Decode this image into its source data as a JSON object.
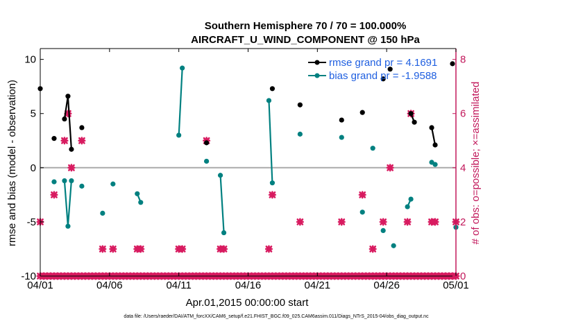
{
  "chart_data": {
    "type": "line",
    "title": "Southern Hemisphere 70 / 70 = 100.000%",
    "subtitle": "AIRCRAFT_U_WIND_COMPONENT @ 150 hPa",
    "xlabel": "Apr.01,2015 00:00:00 start",
    "ylabel": "rmse and bias (model - observation)",
    "y2label": "# of obs: o=possible; ×=assimilated",
    "xlim": [
      1,
      31
    ],
    "ylim": [
      -10,
      11
    ],
    "y2lim": [
      0,
      8.4
    ],
    "x_ticks": [
      1,
      6,
      11,
      16,
      21,
      26,
      31
    ],
    "x_tick_labels": [
      "04/01",
      "04/06",
      "04/11",
      "04/16",
      "04/21",
      "04/26",
      "05/01"
    ],
    "y_ticks": [
      -10,
      -5,
      0,
      5,
      10
    ],
    "y2_ticks": [
      0,
      2,
      4,
      6,
      8
    ],
    "zero_line": 0,
    "legend_placement": "top-right",
    "footnote": "data file: /Users/raeder/DAI/ATM_forcXX/CAM6_setup/f.e21.FHIST_BGC.f09_025.CAM6assim.011/Diags_NTrS_2015-04/obs_diag_output.nc",
    "colors": {
      "rmse": "#000000",
      "bias": "#008080",
      "counts": "#d81b60",
      "zero": "#aaaaaa",
      "axis_right": "#c2185b",
      "legend_text": "#1f5fe0"
    },
    "series": [
      {
        "name": "rmse grand pr = 4.1691",
        "segments": [
          [
            [
              1.0,
              7.3
            ]
          ],
          [
            [
              2.0,
              2.7
            ]
          ],
          [
            [
              2.75,
              4.5
            ],
            [
              3.0,
              6.6
            ],
            [
              3.25,
              1.7
            ]
          ],
          [
            [
              4.0,
              3.7
            ]
          ],
          [
            [
              13.0,
              2.3
            ]
          ],
          [
            [
              17.75,
              7.3
            ]
          ],
          [
            [
              19.75,
              5.8
            ]
          ],
          [
            [
              22.75,
              4.4
            ]
          ],
          [
            [
              24.25,
              5.1
            ]
          ],
          [
            [
              25.75,
              8.2
            ]
          ],
          [
            [
              26.25,
              9.1
            ]
          ],
          [
            [
              27.75,
              5.0
            ],
            [
              28.0,
              4.2
            ]
          ],
          [
            [
              29.25,
              3.7
            ],
            [
              29.5,
              2.1
            ]
          ],
          [
            [
              30.75,
              9.6
            ]
          ]
        ]
      },
      {
        "name": "bias grand pr = -1.9588",
        "segments": [
          [
            [
              2.0,
              -1.3
            ]
          ],
          [
            [
              2.75,
              -1.2
            ],
            [
              3.0,
              -5.4
            ],
            [
              3.25,
              -1.2
            ]
          ],
          [
            [
              4.0,
              -1.7
            ]
          ],
          [
            [
              5.5,
              -4.2
            ]
          ],
          [
            [
              6.25,
              -1.5
            ]
          ],
          [
            [
              8.0,
              -2.4
            ],
            [
              8.25,
              -3.2
            ]
          ],
          [
            [
              11.0,
              3.0
            ],
            [
              11.25,
              9.2
            ]
          ],
          [
            [
              13.0,
              0.6
            ]
          ],
          [
            [
              14.0,
              -0.7
            ],
            [
              14.25,
              -6.0
            ]
          ],
          [
            [
              17.5,
              6.2
            ],
            [
              17.75,
              -1.4
            ]
          ],
          [
            [
              19.75,
              3.1
            ]
          ],
          [
            [
              22.75,
              2.8
            ]
          ],
          [
            [
              24.25,
              -4.1
            ]
          ],
          [
            [
              25.0,
              1.8
            ]
          ],
          [
            [
              25.75,
              -5.8
            ]
          ],
          [
            [
              26.5,
              -7.2
            ]
          ],
          [
            [
              27.5,
              -3.6
            ],
            [
              27.75,
              -2.9
            ]
          ],
          [
            [
              29.25,
              0.5
            ],
            [
              29.5,
              0.3
            ]
          ],
          [
            [
              31.0,
              -5.5
            ]
          ]
        ]
      }
    ],
    "obs_counts": {
      "points": [
        [
          1.0,
          2
        ],
        [
          2.0,
          3
        ],
        [
          2.75,
          5
        ],
        [
          3.0,
          6
        ],
        [
          3.25,
          4
        ],
        [
          4.0,
          5
        ],
        [
          5.5,
          1
        ],
        [
          6.25,
          1
        ],
        [
          8.0,
          1
        ],
        [
          8.25,
          1
        ],
        [
          11.0,
          1
        ],
        [
          11.25,
          1
        ],
        [
          13.0,
          5
        ],
        [
          14.0,
          1
        ],
        [
          14.25,
          1
        ],
        [
          17.5,
          1
        ],
        [
          17.75,
          3
        ],
        [
          19.75,
          2
        ],
        [
          22.75,
          2
        ],
        [
          24.25,
          3
        ],
        [
          25.0,
          1
        ],
        [
          25.75,
          2
        ],
        [
          26.25,
          4
        ],
        [
          27.5,
          2
        ],
        [
          27.75,
          6
        ],
        [
          29.25,
          2
        ],
        [
          29.5,
          2
        ],
        [
          31.0,
          2
        ]
      ],
      "zero_x_start": 1.0,
      "zero_x_end": 31.0,
      "zero_x_step": 0.25
    }
  }
}
